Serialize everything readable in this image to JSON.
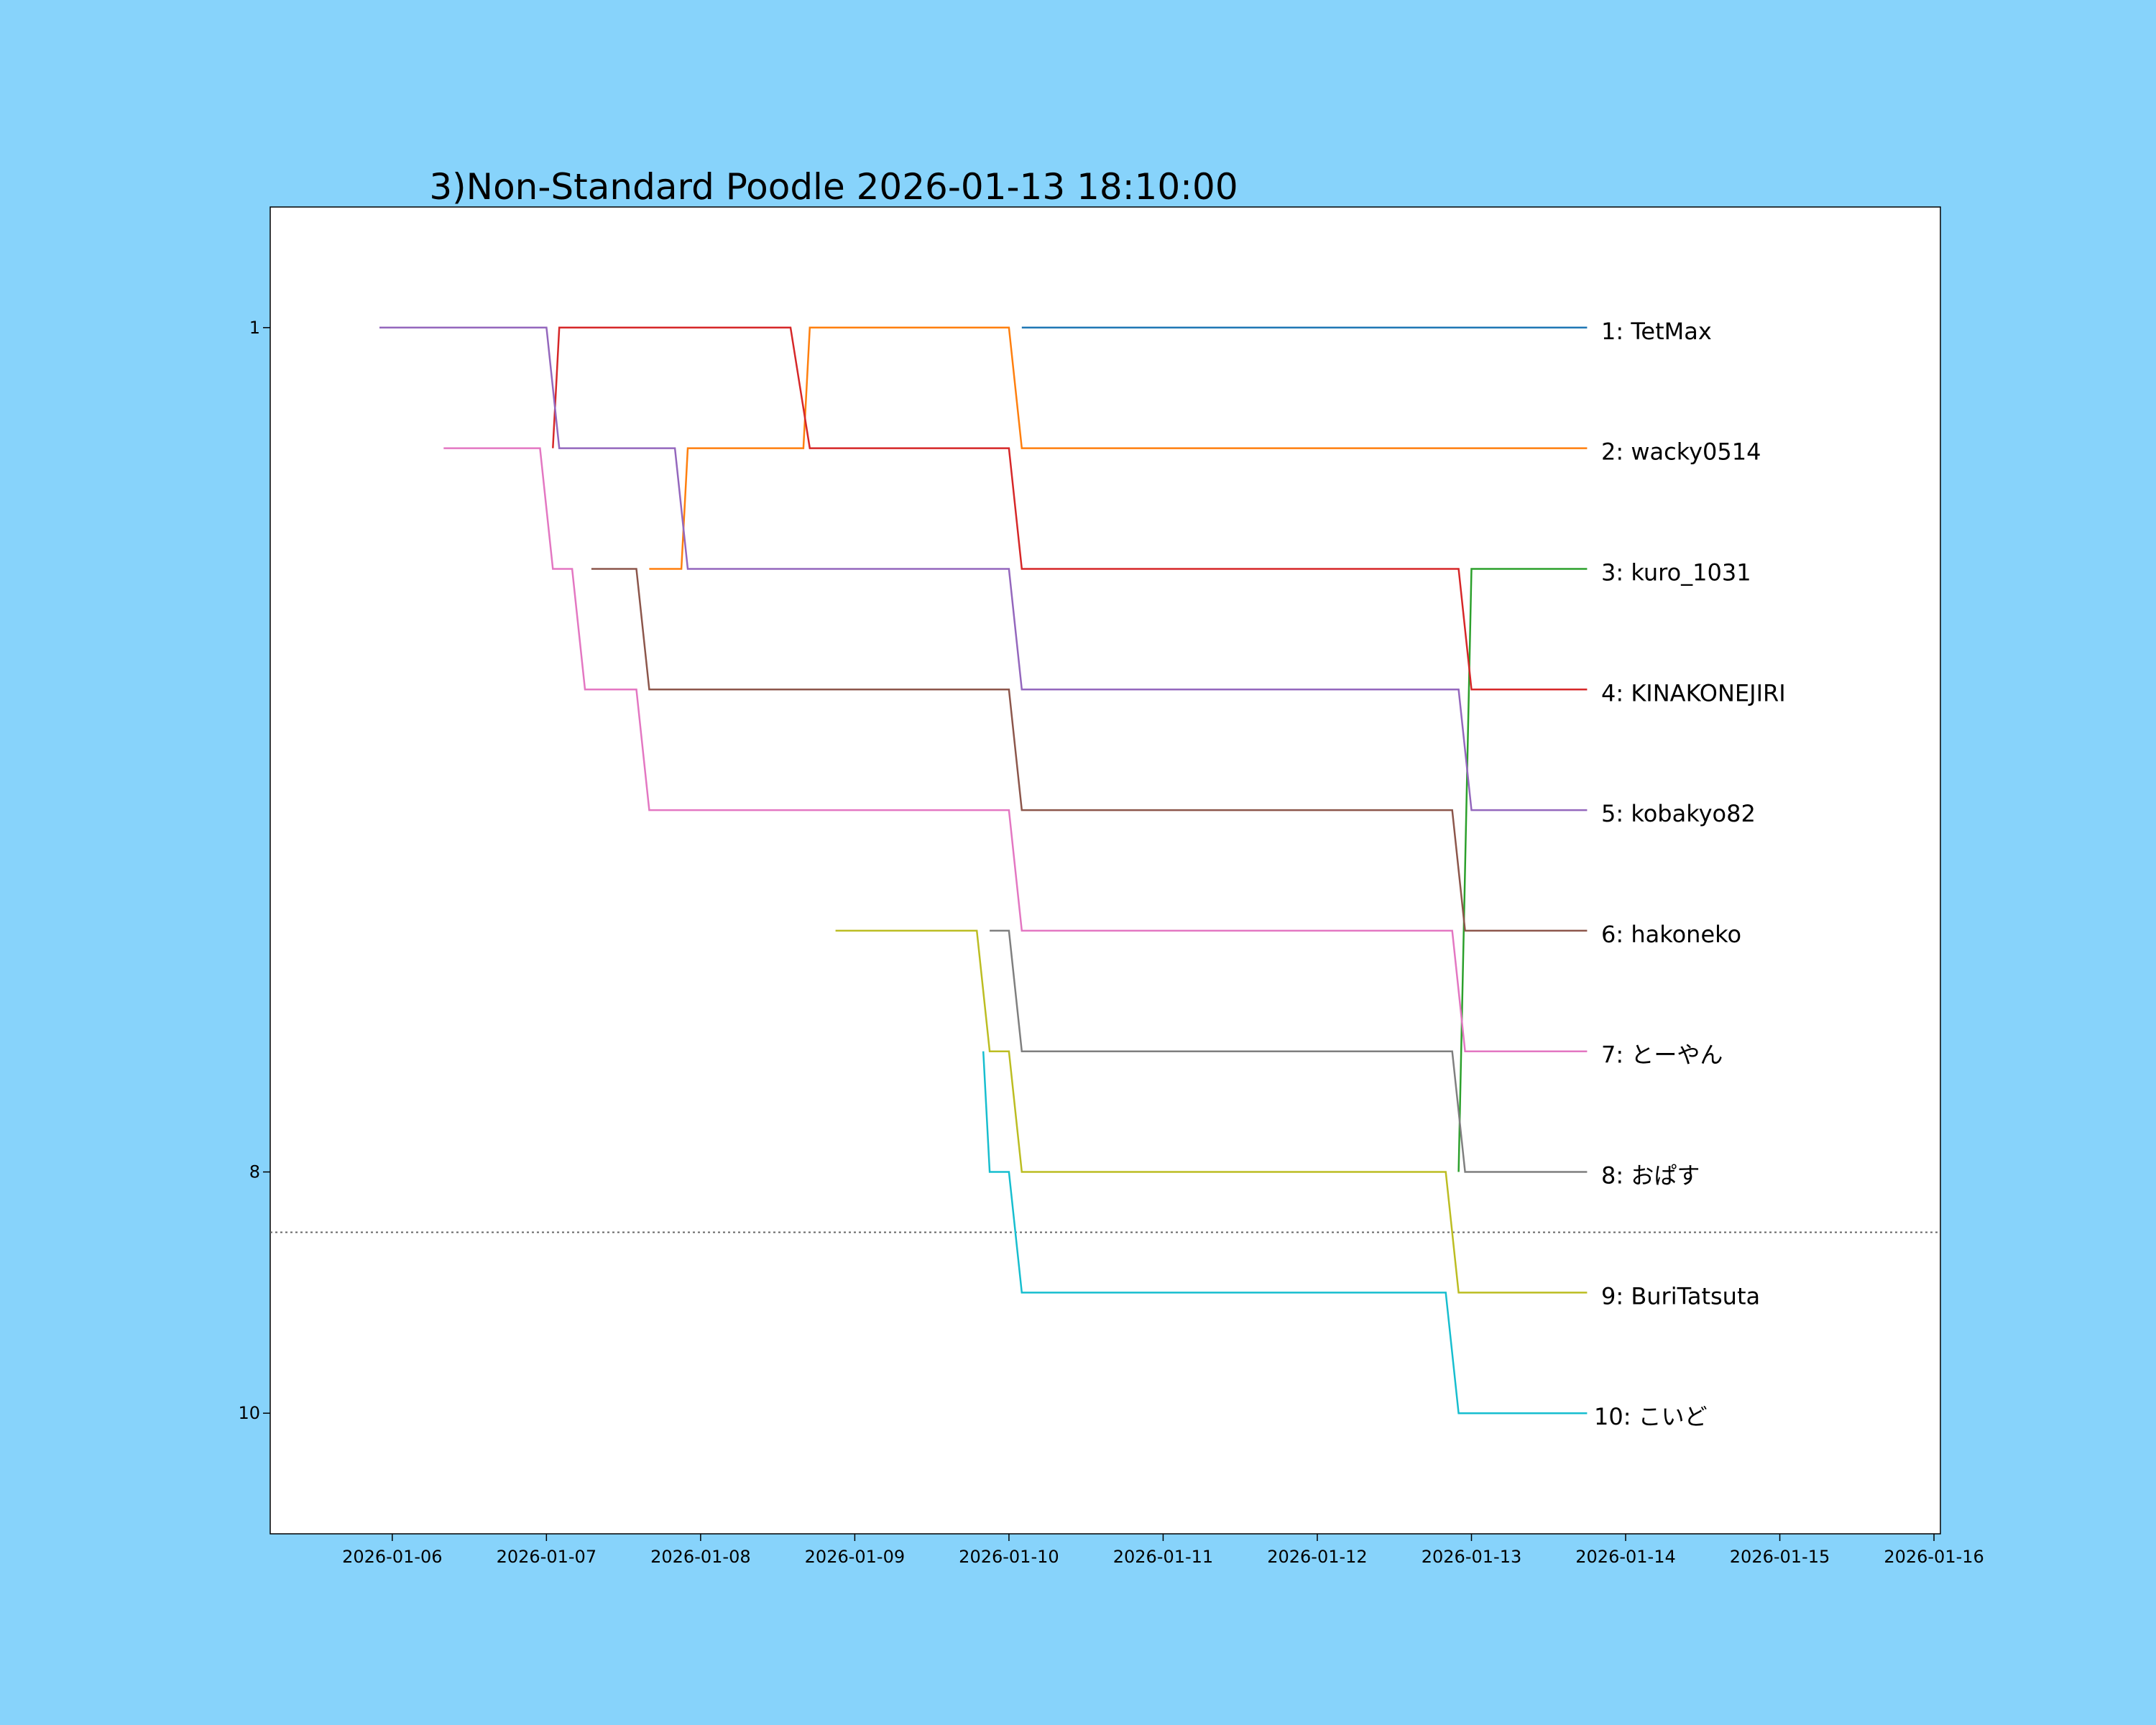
{
  "chart_data": {
    "type": "line",
    "title": "3)Non-Standard Poodle 2026-01-13 18:10:00",
    "xlabel": "",
    "ylabel": "",
    "x_ticks": [
      "2026-01-06",
      "2026-01-07",
      "2026-01-08",
      "2026-01-09",
      "2026-01-10",
      "2026-01-11",
      "2026-01-12",
      "2026-01-13",
      "2026-01-14",
      "2026-01-15",
      "2026-01-16"
    ],
    "y_ticks": [
      "1",
      "8",
      "10"
    ],
    "xlim": [
      "2026-01-05T05:00",
      "2026-01-16T01:00"
    ],
    "ylim": [
      11,
      0
    ],
    "y_inverted": true,
    "cutoff_rank": 8.5,
    "grid": false,
    "legend": "none",
    "end_labels": [
      "1: TetMax",
      "2: wacky0514",
      "3: kuro_1031",
      "4: KINAKONEJIRI",
      "5: kobakyo82",
      "6: hakoneko",
      "7: とーやん",
      "8: おぱす",
      "9: BuriTatsuta",
      "10: こいど"
    ],
    "series": [
      {
        "name": "TetMax",
        "color": "#1f77b4",
        "points": [
          [
            "2026-01-10T02:00",
            1
          ],
          [
            "2026-01-13T18:00",
            1
          ]
        ]
      },
      {
        "name": "wacky0514",
        "color": "#ff7f0e",
        "points": [
          [
            "2026-01-07T16:00",
            3
          ],
          [
            "2026-01-07T21:00",
            3
          ],
          [
            "2026-01-07T22:00",
            2
          ],
          [
            "2026-01-08T16:00",
            2
          ],
          [
            "2026-01-08T17:00",
            1
          ],
          [
            "2026-01-10T00:00",
            1
          ],
          [
            "2026-01-10T02:00",
            2
          ],
          [
            "2026-01-13T18:00",
            2
          ]
        ]
      },
      {
        "name": "kuro_1031",
        "color": "#2ca02c",
        "points": [
          [
            "2026-01-12T22:00",
            8
          ],
          [
            "2026-01-13T00:00",
            3
          ],
          [
            "2026-01-13T18:00",
            3
          ]
        ]
      },
      {
        "name": "KINAKONEJIRI",
        "color": "#d62728",
        "points": [
          [
            "2026-01-07T01:00",
            2
          ],
          [
            "2026-01-07T02:00",
            1
          ],
          [
            "2026-01-08T14:00",
            1
          ],
          [
            "2026-01-08T17:00",
            2
          ],
          [
            "2026-01-10T00:00",
            2
          ],
          [
            "2026-01-10T02:00",
            3
          ],
          [
            "2026-01-12T22:00",
            3
          ],
          [
            "2026-01-13T00:00",
            4
          ],
          [
            "2026-01-13T18:00",
            4
          ]
        ]
      },
      {
        "name": "kobakyo82",
        "color": "#9467bd",
        "points": [
          [
            "2026-01-05T22:00",
            1
          ],
          [
            "2026-01-07T00:00",
            1
          ],
          [
            "2026-01-07T02:00",
            2
          ],
          [
            "2026-01-07T20:00",
            2
          ],
          [
            "2026-01-07T22:00",
            3
          ],
          [
            "2026-01-10T00:00",
            3
          ],
          [
            "2026-01-10T02:00",
            4
          ],
          [
            "2026-01-12T22:00",
            4
          ],
          [
            "2026-01-13T00:00",
            5
          ],
          [
            "2026-01-13T18:00",
            5
          ]
        ]
      },
      {
        "name": "hakoneko",
        "color": "#8c564b",
        "points": [
          [
            "2026-01-07T07:00",
            3
          ],
          [
            "2026-01-07T14:00",
            3
          ],
          [
            "2026-01-07T16:00",
            4
          ],
          [
            "2026-01-10T00:00",
            4
          ],
          [
            "2026-01-10T02:00",
            5
          ],
          [
            "2026-01-12T21:00",
            5
          ],
          [
            "2026-01-12T23:00",
            6
          ],
          [
            "2026-01-13T18:00",
            6
          ]
        ]
      },
      {
        "name": "とーやん",
        "color": "#e377c2",
        "points": [
          [
            "2026-01-06T08:00",
            2
          ],
          [
            "2026-01-06T23:00",
            2
          ],
          [
            "2026-01-07T01:00",
            3
          ],
          [
            "2026-01-07T04:00",
            3
          ],
          [
            "2026-01-07T06:00",
            4
          ],
          [
            "2026-01-07T14:00",
            4
          ],
          [
            "2026-01-07T16:00",
            5
          ],
          [
            "2026-01-10T00:00",
            5
          ],
          [
            "2026-01-10T02:00",
            6
          ],
          [
            "2026-01-12T21:00",
            6
          ],
          [
            "2026-01-12T23:00",
            7
          ],
          [
            "2026-01-13T18:00",
            7
          ]
        ]
      },
      {
        "name": "おぱす",
        "color": "#7f7f7f",
        "points": [
          [
            "2026-01-09T21:00",
            6
          ],
          [
            "2026-01-10T00:00",
            6
          ],
          [
            "2026-01-10T02:00",
            7
          ],
          [
            "2026-01-12T21:00",
            7
          ],
          [
            "2026-01-12T23:00",
            8
          ],
          [
            "2026-01-13T18:00",
            8
          ]
        ]
      },
      {
        "name": "BuriTatsuta",
        "color": "#bcbd22",
        "points": [
          [
            "2026-01-08T21:00",
            6
          ],
          [
            "2026-01-09T19:00",
            6
          ],
          [
            "2026-01-09T21:00",
            7
          ],
          [
            "2026-01-10T00:00",
            7
          ],
          [
            "2026-01-10T02:00",
            8
          ],
          [
            "2026-01-12T20:00",
            8
          ],
          [
            "2026-01-12T22:00",
            9
          ],
          [
            "2026-01-13T18:00",
            9
          ]
        ]
      },
      {
        "name": "こいど",
        "color": "#17becf",
        "points": [
          [
            "2026-01-09T20:00",
            7
          ],
          [
            "2026-01-09T21:00",
            8
          ],
          [
            "2026-01-10T00:00",
            8
          ],
          [
            "2026-01-10T02:00",
            9
          ],
          [
            "2026-01-12T20:00",
            9
          ],
          [
            "2026-01-12T22:00",
            10
          ],
          [
            "2026-01-13T18:00",
            10
          ]
        ]
      }
    ]
  }
}
